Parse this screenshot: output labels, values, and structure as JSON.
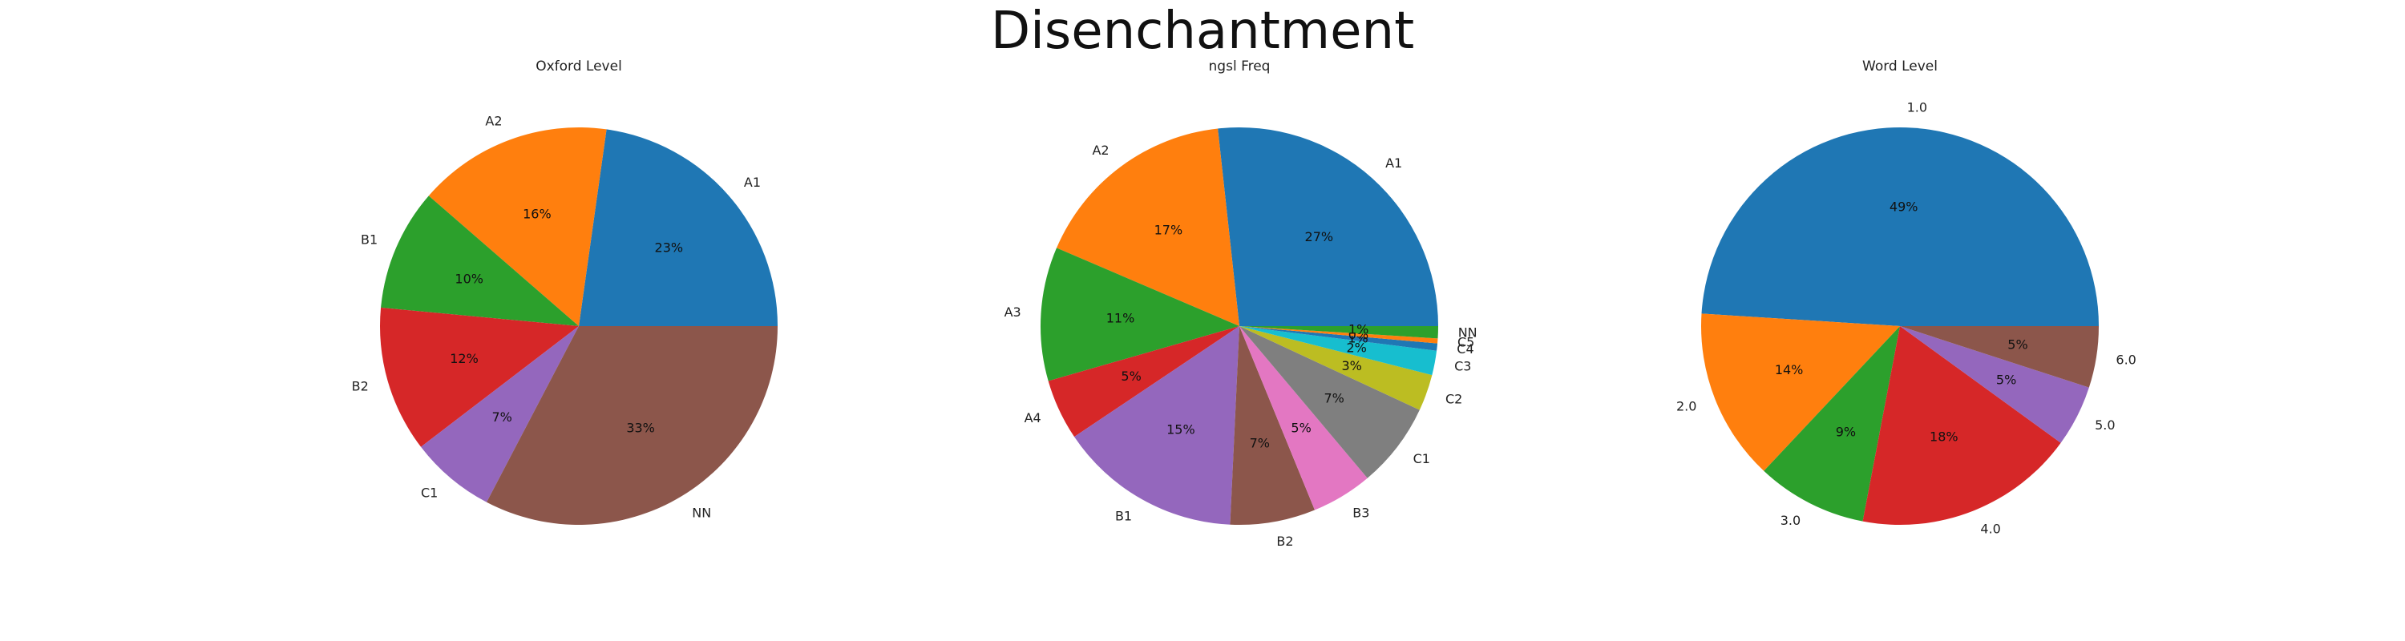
{
  "title": "Disenchantment",
  "chart_data": [
    {
      "type": "pie",
      "title": "Oxford Level",
      "categories": [
        "A1",
        "A2",
        "B1",
        "B2",
        "C1",
        "NN"
      ],
      "values": [
        23,
        16,
        10,
        12,
        7,
        33
      ],
      "labels": [
        "23%",
        "16%",
        "10%",
        "12%",
        "7%",
        "33%"
      ],
      "colors": [
        "#1f77b4",
        "#ff7f0e",
        "#2ca02c",
        "#d62728",
        "#9467bd",
        "#8c564b"
      ]
    },
    {
      "type": "pie",
      "title": "ngsl Freq",
      "categories": [
        "A1",
        "A2",
        "A3",
        "A4",
        "B1",
        "B2",
        "B3",
        "C1",
        "C2",
        "C3",
        "C4",
        "C5",
        "NN"
      ],
      "values": [
        27,
        17,
        11,
        5,
        15,
        7,
        5,
        7,
        3,
        2,
        0.6,
        0.4,
        1
      ],
      "labels": [
        "27%",
        "17%",
        "11%",
        "5%",
        "15%",
        "7%",
        "5%",
        "7%",
        "3%",
        "2%",
        "1%",
        "0%",
        "1%"
      ],
      "colors": [
        "#1f77b4",
        "#ff7f0e",
        "#2ca02c",
        "#d62728",
        "#9467bd",
        "#8c564b",
        "#e377c2",
        "#7f7f7f",
        "#bcbd22",
        "#17becf",
        "#1f77b4",
        "#ff7f0e",
        "#2ca02c"
      ]
    },
    {
      "type": "pie",
      "title": "Word Level",
      "categories": [
        "1.0",
        "2.0",
        "3.0",
        "4.0",
        "5.0",
        "6.0"
      ],
      "values": [
        49,
        14,
        9,
        18,
        5,
        5
      ],
      "labels": [
        "49%",
        "14%",
        "9%",
        "18%",
        "5%",
        "5%"
      ],
      "colors": [
        "#1f77b4",
        "#ff7f0e",
        "#2ca02c",
        "#d62728",
        "#9467bd",
        "#8c564b"
      ]
    }
  ]
}
